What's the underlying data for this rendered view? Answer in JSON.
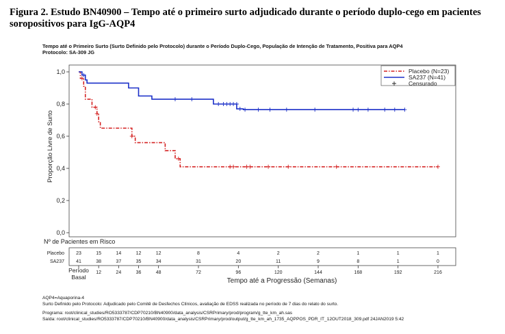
{
  "figure_title": "Figura 2. Estudo BN40900 – Tempo até o primeiro surto adjudicado durante o período duplo-cego em pacientes soropositivos para IgG-AQP4",
  "chart_subtitle_1": "Tempo até o Primeiro Surto (Surto Definido pelo Protocolo) durante o Período Duplo-Cego, População de Intenção de Tratamento, Positiva para AQP4",
  "chart_subtitle_2": "Protocolo: SA-309 JG",
  "footnotes": [
    "AQP4=Aquaporina-4",
    "Surto Definido pelo Protocolo: Adjudicado pelo Comitê de Desfechos Clínicos, avaliação de EDSS realizada no período de 7 dias do relato do surto.",
    "Programa: root/clinical_studies/RO5333787/CDP70210/BN40900/data_analysis/CSRPrimary/prod/program/g_tte_km_ah.sas",
    "Saída: root/clinical_studies/RO5333787/CDP70210/BN40900/data_analysis/CSRPrimary/prod/output/g_tte_km_ah_1735_AQPPOS_PDR_IT_12OUT2018_309.pdf 24JAN2019 5:42"
  ],
  "chart_data": {
    "type": "line",
    "ylabel": "Proporção Livre de Surto",
    "xlabel": "Tempo até a Progressão (Semanas)",
    "xlim": [
      0,
      228
    ],
    "ylim": [
      0,
      1
    ],
    "x_ticks": [
      0,
      12,
      24,
      36,
      48,
      72,
      96,
      120,
      144,
      168,
      192,
      216
    ],
    "x_tick_labels": [
      "Período\nBasal",
      "12",
      "24",
      "36",
      "48",
      "72",
      "96",
      "120",
      "144",
      "168",
      "192",
      "216"
    ],
    "y_ticks": [
      0,
      0.2,
      0.4,
      0.6,
      0.8,
      1.0
    ],
    "y_tick_labels": [
      "0,0",
      "0,2",
      "0,4",
      "0,6",
      "0,8",
      "1,0"
    ],
    "grid": false,
    "legend_position": "top-right",
    "legend": [
      "Placebo (N=23)",
      "SA237 (N=41)",
      "Censurado"
    ],
    "series": [
      {
        "name": "Placebo (N=23)",
        "color": "#d42020",
        "style": "dash-dot",
        "steps": [
          [
            0,
            1.0
          ],
          [
            1,
            0.96
          ],
          [
            3,
            0.91
          ],
          [
            4,
            0.83
          ],
          [
            8,
            0.78
          ],
          [
            11,
            0.74
          ],
          [
            12,
            0.69
          ],
          [
            13,
            0.65
          ],
          [
            32,
            0.6
          ],
          [
            34,
            0.56
          ],
          [
            52,
            0.51
          ],
          [
            58,
            0.46
          ],
          [
            61,
            0.41
          ],
          [
            216,
            0.41
          ]
        ],
        "censored": [
          [
            2,
            0.96
          ],
          [
            10,
            0.78
          ],
          [
            11,
            0.74
          ],
          [
            32,
            0.6
          ],
          [
            60,
            0.46
          ],
          [
            91,
            0.41
          ],
          [
            93,
            0.41
          ],
          [
            101,
            0.41
          ],
          [
            103,
            0.41
          ],
          [
            114,
            0.41
          ],
          [
            126,
            0.41
          ],
          [
            155,
            0.41
          ],
          [
            216,
            0.41
          ]
        ]
      },
      {
        "name": "SA237 (N=41)",
        "color": "#1a2fc8",
        "style": "solid",
        "steps": [
          [
            0,
            1.0
          ],
          [
            2,
            0.98
          ],
          [
            4,
            0.95
          ],
          [
            5,
            0.93
          ],
          [
            30,
            0.9
          ],
          [
            36,
            0.85
          ],
          [
            44,
            0.83
          ],
          [
            81,
            0.8
          ],
          [
            95,
            0.77
          ],
          [
            99,
            0.765
          ],
          [
            196,
            0.765
          ]
        ],
        "censored": [
          [
            3,
            0.98
          ],
          [
            58,
            0.83
          ],
          [
            68,
            0.83
          ],
          [
            84,
            0.8
          ],
          [
            87,
            0.8
          ],
          [
            89,
            0.8
          ],
          [
            91,
            0.8
          ],
          [
            93,
            0.8
          ],
          [
            95,
            0.8
          ],
          [
            97,
            0.77
          ],
          [
            100,
            0.765
          ],
          [
            108,
            0.765
          ],
          [
            115,
            0.765
          ],
          [
            125,
            0.765
          ],
          [
            142,
            0.765
          ],
          [
            165,
            0.765
          ],
          [
            168,
            0.765
          ],
          [
            174,
            0.765
          ],
          [
            184,
            0.765
          ],
          [
            190,
            0.765
          ],
          [
            196,
            0.765
          ]
        ]
      }
    ],
    "risk_table": {
      "title": "Nº de Pacientes em Risco",
      "rows": [
        {
          "label": "Placebo",
          "values": [
            "23",
            "15",
            "14",
            "12",
            "12",
            "8",
            "4",
            "2",
            "2",
            "1",
            "1",
            "1"
          ]
        },
        {
          "label": "SA237",
          "values": [
            "41",
            "38",
            "37",
            "35",
            "34",
            "31",
            "20",
            "11",
            "9",
            "8",
            "1",
            "0"
          ]
        }
      ]
    }
  }
}
